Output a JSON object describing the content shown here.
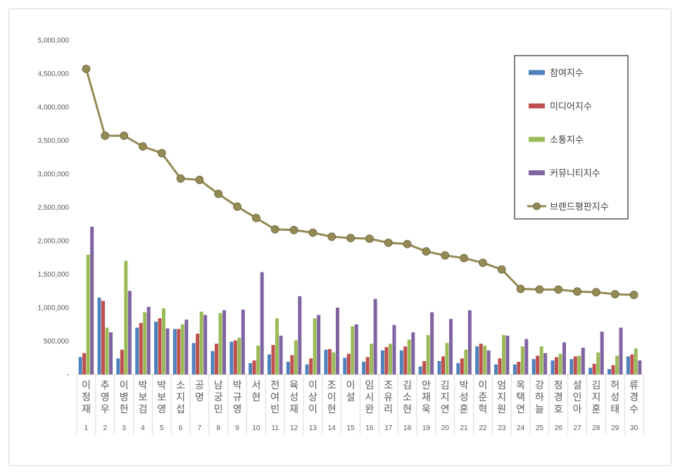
{
  "chart_data": {
    "type": "bar",
    "ylim": [
      0,
      5000000
    ],
    "yticks": [
      "-",
      "500,000",
      "1,000,000",
      "1,500,000",
      "2,000,000",
      "2,500,000",
      "3,000,000",
      "3,500,000",
      "4,000,000",
      "4,500,000",
      "5,000,000"
    ],
    "categories": [
      "이정재",
      "추영우",
      "이병헌",
      "박보검",
      "박보영",
      "소지섭",
      "공명",
      "남궁민",
      "박규영",
      "서현",
      "전여빈",
      "육성재",
      "이상이",
      "조이현",
      "이설",
      "임시완",
      "조유리",
      "김소현",
      "안재욱",
      "김지연",
      "박성훈",
      "이준혁",
      "엄지원",
      "옥택연",
      "강하늘",
      "정경호",
      "설인아",
      "김지훈",
      "허성태",
      "류경수"
    ],
    "ranks": [
      "1",
      "2",
      "3",
      "4",
      "5",
      "6",
      "7",
      "8",
      "9",
      "10",
      "11",
      "12",
      "13",
      "14",
      "15",
      "16",
      "17",
      "18",
      "19",
      "20",
      "21",
      "22",
      "23",
      "24",
      "25",
      "26",
      "27",
      "28",
      "29",
      "30"
    ],
    "series": [
      {
        "name": "참여지수",
        "type": "bar",
        "color": "#4f81bd",
        "values": [
          260000,
          1150000,
          240000,
          700000,
          790000,
          680000,
          470000,
          350000,
          490000,
          170000,
          300000,
          190000,
          150000,
          370000,
          250000,
          190000,
          360000,
          360000,
          120000,
          200000,
          170000,
          420000,
          150000,
          150000,
          230000,
          210000,
          230000,
          100000,
          80000,
          270000
        ]
      },
      {
        "name": "미디어지수",
        "type": "bar",
        "color": "#c0504d",
        "values": [
          320000,
          1100000,
          370000,
          770000,
          840000,
          680000,
          610000,
          460000,
          510000,
          210000,
          440000,
          290000,
          240000,
          380000,
          310000,
          260000,
          410000,
          420000,
          200000,
          270000,
          240000,
          460000,
          240000,
          190000,
          280000,
          260000,
          270000,
          160000,
          140000,
          300000
        ]
      },
      {
        "name": "소통지수",
        "type": "bar",
        "color": "#9bbb59",
        "values": [
          1790000,
          700000,
          1700000,
          930000,
          990000,
          750000,
          940000,
          920000,
          550000,
          430000,
          840000,
          510000,
          840000,
          330000,
          720000,
          460000,
          460000,
          520000,
          590000,
          470000,
          370000,
          430000,
          590000,
          420000,
          420000,
          310000,
          280000,
          330000,
          280000,
          390000
        ]
      },
      {
        "name": "커뮤니티지수",
        "type": "bar",
        "color": "#8064a2",
        "values": [
          2210000,
          630000,
          1250000,
          1010000,
          690000,
          820000,
          890000,
          960000,
          970000,
          1530000,
          580000,
          1170000,
          890000,
          1000000,
          750000,
          1130000,
          740000,
          630000,
          930000,
          830000,
          960000,
          360000,
          580000,
          530000,
          320000,
          480000,
          400000,
          640000,
          700000,
          210000
        ]
      },
      {
        "name": "브랜드평판지수",
        "type": "line",
        "color": "#948a54",
        "values": [
          4570000,
          3570000,
          3570000,
          3410000,
          3310000,
          2930000,
          2910000,
          2700000,
          2510000,
          2340000,
          2170000,
          2160000,
          2120000,
          2060000,
          2040000,
          2030000,
          1970000,
          1950000,
          1840000,
          1780000,
          1740000,
          1670000,
          1570000,
          1280000,
          1270000,
          1270000,
          1240000,
          1230000,
          1200000,
          1190000
        ]
      }
    ],
    "legend_position": "right",
    "grid": false
  }
}
